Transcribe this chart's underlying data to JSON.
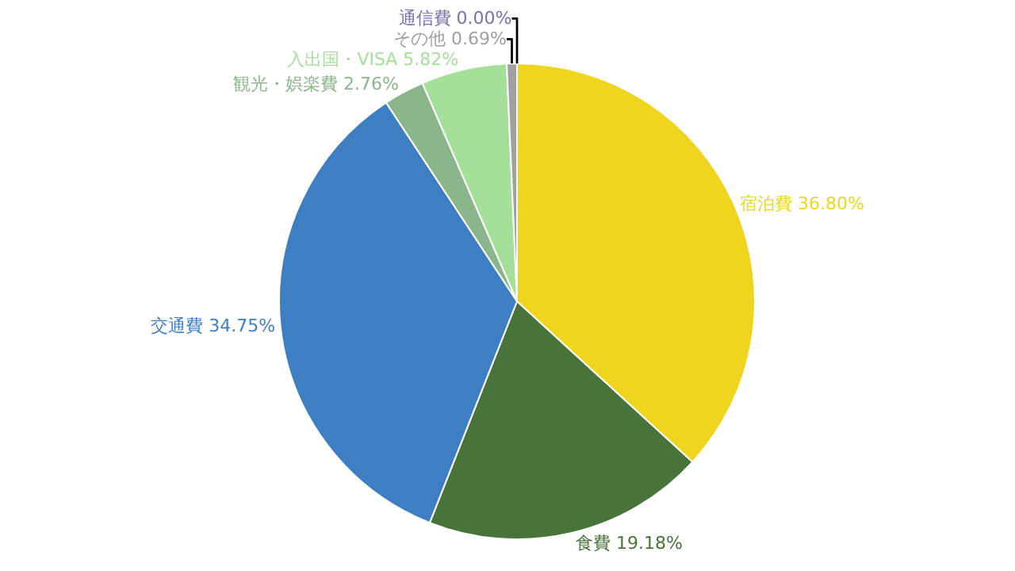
{
  "chart_data": {
    "type": "pie",
    "categories": [
      "宿泊費",
      "食費",
      "交通費",
      "観光・娯楽費",
      "入出国・VISA",
      "その他",
      "通信費"
    ],
    "values": [
      36.8,
      19.18,
      34.75,
      2.76,
      5.82,
      0.69,
      0.0
    ],
    "value_labels": [
      "36.80%",
      "19.18%",
      "34.75%",
      "2.76%",
      "5.82%",
      "0.69%",
      "0.00%"
    ],
    "colors": [
      "#f0d51e",
      "#48733a",
      "#3e7fc4",
      "#8bb58b",
      "#a5e09a",
      "#a0a0a0",
      "#7c6fb0"
    ],
    "legend": false
  }
}
